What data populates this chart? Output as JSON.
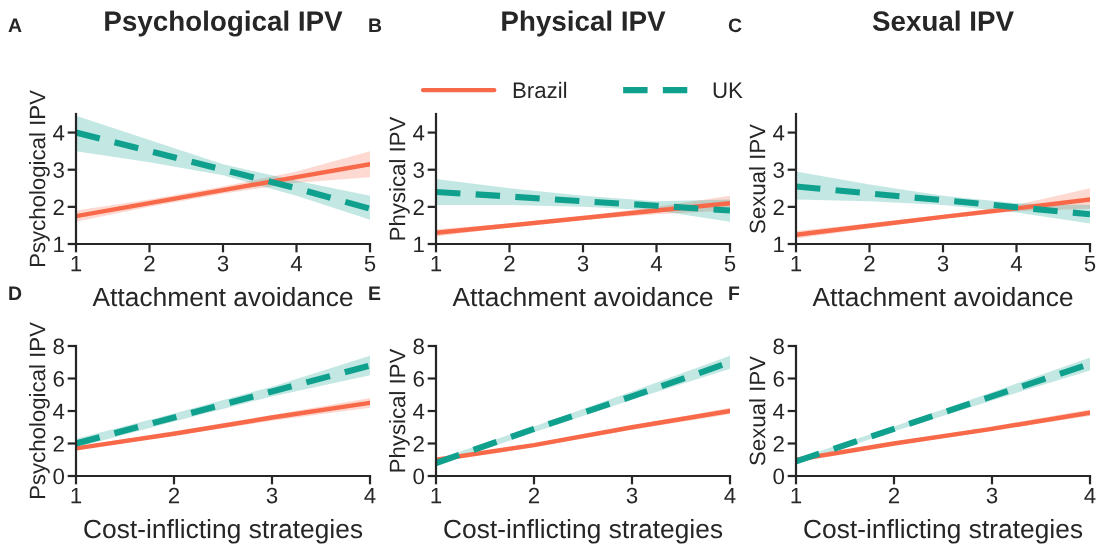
{
  "chart_data": [
    {
      "type": "line",
      "title": "Psychological IPV",
      "xlabel": "Attachment avoidance",
      "ylabel": "Psychological IPV",
      "annotations": [
        "A"
      ],
      "xlim": [
        1,
        5
      ],
      "xticks": [
        1,
        2,
        3,
        4,
        5
      ],
      "ylim": [
        1,
        4.5
      ],
      "yticks": [
        1,
        2,
        3,
        4
      ],
      "grid": false,
      "legend": false,
      "marker": "none",
      "series": [
        {
          "color": "#f8694a",
          "line_style": "solid",
          "x": [
            1,
            2,
            3,
            4,
            5
          ],
          "values": [
            1.75,
            2.1,
            2.45,
            2.8,
            3.15
          ],
          "lower": [
            1.6,
            2.0,
            2.35,
            2.65,
            2.8
          ],
          "upper": [
            1.9,
            2.2,
            2.55,
            2.95,
            3.5
          ]
        },
        {
          "color": "#10a08e",
          "line_style": "dashed",
          "x": [
            1,
            2,
            3,
            4,
            5
          ],
          "values": [
            4.0,
            3.5,
            3.0,
            2.5,
            1.95
          ],
          "lower": [
            3.5,
            3.2,
            2.85,
            2.3,
            1.65
          ],
          "upper": [
            4.45,
            3.8,
            3.15,
            2.7,
            2.3
          ]
        }
      ]
    },
    {
      "type": "line",
      "title": "Physical IPV",
      "xlabel": "Attachment avoidance",
      "ylabel": "Physical IPV",
      "annotations": [
        "B"
      ],
      "xlim": [
        1,
        5
      ],
      "xticks": [
        1,
        2,
        3,
        4,
        5
      ],
      "ylim": [
        1,
        4.5
      ],
      "yticks": [
        1,
        2,
        3,
        4
      ],
      "grid": false,
      "legend": "top",
      "marker": "none",
      "series": [
        {
          "name": "Brazil",
          "color": "#f8694a",
          "line_style": "solid",
          "x": [
            1,
            2,
            3,
            4,
            5
          ],
          "values": [
            1.3,
            1.5,
            1.7,
            1.9,
            2.1
          ],
          "lower": [
            1.2,
            1.45,
            1.65,
            1.8,
            1.9
          ],
          "upper": [
            1.4,
            1.55,
            1.75,
            2.0,
            2.3
          ]
        },
        {
          "name": "UK",
          "color": "#10a08e",
          "line_style": "dashed",
          "x": [
            1,
            2,
            3,
            4,
            5
          ],
          "values": [
            2.4,
            2.28,
            2.15,
            2.03,
            1.9
          ],
          "lower": [
            2.05,
            2.05,
            2.0,
            1.9,
            1.6
          ],
          "upper": [
            2.75,
            2.5,
            2.3,
            2.15,
            2.2
          ]
        }
      ]
    },
    {
      "type": "line",
      "title": "Sexual IPV",
      "xlabel": "Attachment avoidance",
      "ylabel": "Sexual IPV",
      "annotations": [
        "C"
      ],
      "xlim": [
        1,
        5
      ],
      "xticks": [
        1,
        2,
        3,
        4,
        5
      ],
      "ylim": [
        1,
        4.5
      ],
      "yticks": [
        1,
        2,
        3,
        4
      ],
      "grid": false,
      "legend": false,
      "marker": "none",
      "series": [
        {
          "color": "#f8694a",
          "line_style": "solid",
          "x": [
            1,
            2,
            3,
            4,
            5
          ],
          "values": [
            1.25,
            1.49,
            1.73,
            1.96,
            2.2
          ],
          "lower": [
            1.15,
            1.42,
            1.68,
            1.88,
            1.95
          ],
          "upper": [
            1.35,
            1.56,
            1.78,
            2.05,
            2.5
          ]
        },
        {
          "color": "#10a08e",
          "line_style": "dashed",
          "x": [
            1,
            2,
            3,
            4,
            5
          ],
          "values": [
            2.55,
            2.36,
            2.18,
            1.99,
            1.8
          ],
          "lower": [
            2.2,
            2.15,
            2.05,
            1.85,
            1.55
          ],
          "upper": [
            2.95,
            2.6,
            2.3,
            2.1,
            2.05
          ]
        }
      ]
    },
    {
      "type": "line",
      "xlabel": "Cost-inflicting strategies",
      "ylabel": "Psychological IPV",
      "annotations": [
        "D"
      ],
      "xlim": [
        1,
        4
      ],
      "xticks": [
        1,
        2,
        3,
        4
      ],
      "ylim": [
        0,
        8
      ],
      "yticks": [
        0,
        2,
        4,
        6,
        8
      ],
      "grid": false,
      "legend": false,
      "marker": "none",
      "series": [
        {
          "color": "#f8694a",
          "line_style": "solid",
          "x": [
            1,
            2,
            3,
            4
          ],
          "values": [
            1.7,
            2.6,
            3.6,
            4.5
          ],
          "lower": [
            1.6,
            2.5,
            3.4,
            4.2
          ],
          "upper": [
            1.8,
            2.75,
            3.75,
            4.8
          ]
        },
        {
          "color": "#10a08e",
          "line_style": "dashed",
          "x": [
            1,
            2,
            3,
            4
          ],
          "values": [
            2.0,
            3.6,
            5.2,
            6.8
          ],
          "lower": [
            1.75,
            3.35,
            4.9,
            6.2
          ],
          "upper": [
            2.3,
            3.85,
            5.5,
            7.4
          ]
        }
      ]
    },
    {
      "type": "line",
      "xlabel": "Cost-inflicting strategies",
      "ylabel": "Physical IPV",
      "annotations": [
        "E"
      ],
      "xlim": [
        1,
        4
      ],
      "xticks": [
        1,
        2,
        3,
        4
      ],
      "ylim": [
        0,
        8
      ],
      "yticks": [
        0,
        2,
        4,
        6,
        8
      ],
      "grid": false,
      "legend": false,
      "marker": "none",
      "series": [
        {
          "color": "#f8694a",
          "line_style": "solid",
          "x": [
            1,
            2,
            3,
            4
          ],
          "values": [
            1.0,
            1.9,
            3.0,
            4.0
          ],
          "lower": [
            0.9,
            1.8,
            2.85,
            3.8
          ],
          "upper": [
            1.1,
            2.0,
            3.1,
            4.2
          ]
        },
        {
          "color": "#10a08e",
          "line_style": "dashed",
          "x": [
            1,
            2,
            3,
            4
          ],
          "values": [
            0.8,
            2.9,
            4.9,
            7.0
          ],
          "lower": [
            0.6,
            2.7,
            4.7,
            6.6
          ],
          "upper": [
            1.0,
            3.05,
            5.2,
            7.4
          ]
        }
      ]
    },
    {
      "type": "line",
      "xlabel": "Cost-inflicting strategies",
      "ylabel": "Sexual IPV",
      "annotations": [
        "F"
      ],
      "xlim": [
        1,
        4
      ],
      "xticks": [
        1,
        2,
        3,
        4
      ],
      "ylim": [
        0,
        8
      ],
      "yticks": [
        0,
        2,
        4,
        6,
        8
      ],
      "grid": false,
      "legend": false,
      "marker": "none",
      "series": [
        {
          "color": "#f8694a",
          "line_style": "solid",
          "x": [
            1,
            2,
            3,
            4
          ],
          "values": [
            1.0,
            2.0,
            2.9,
            3.9
          ],
          "lower": [
            0.9,
            1.9,
            2.8,
            3.7
          ],
          "upper": [
            1.1,
            2.05,
            3.05,
            4.1
          ]
        },
        {
          "color": "#10a08e",
          "line_style": "dashed",
          "x": [
            1,
            2,
            3,
            4
          ],
          "values": [
            0.9,
            2.9,
            4.9,
            6.9
          ],
          "lower": [
            0.75,
            2.75,
            4.65,
            6.5
          ],
          "upper": [
            1.05,
            3.05,
            5.15,
            7.3
          ]
        }
      ]
    }
  ]
}
